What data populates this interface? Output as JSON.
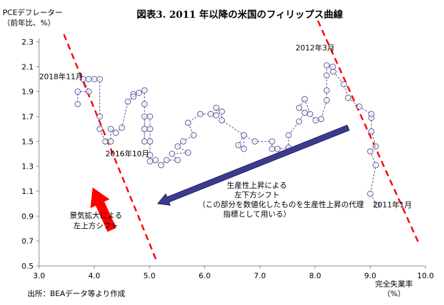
{
  "chart_data": {
    "type": "scatter",
    "title": "図表3. 2011 年以降の米国のフィリップス曲線",
    "ylabel_lines": [
      "PCEデフレーター",
      "（前年比、%）"
    ],
    "xlabel_lines": [
      "完全失業率",
      "（%）"
    ],
    "source": "出所：BEAデータ等より作成",
    "xlim": [
      3.0,
      10.0
    ],
    "ylim": [
      0.5,
      2.3
    ],
    "xticks": [
      "3.0",
      "4.0",
      "5.0",
      "6.0",
      "7.0",
      "8.0",
      "9.0",
      "10.0"
    ],
    "yticks": [
      "0.5",
      "0.7",
      "0.9",
      "1.1",
      "1.3",
      "1.5",
      "1.7",
      "1.9",
      "2.1",
      "2.3"
    ],
    "grid": false,
    "series_color": "#5a5a9a",
    "points": [
      [
        9.12,
        0.99
      ],
      [
        9.0,
        1.08
      ],
      [
        9.1,
        1.31
      ],
      [
        9.0,
        1.42
      ],
      [
        9.1,
        1.46
      ],
      [
        9.02,
        1.58
      ],
      [
        9.02,
        1.69
      ],
      [
        9.02,
        1.72
      ],
      [
        8.8,
        1.78
      ],
      [
        8.6,
        1.85
      ],
      [
        8.52,
        1.96
      ],
      [
        8.33,
        2.06
      ],
      [
        8.32,
        2.1
      ],
      [
        8.21,
        2.11
      ],
      [
        8.21,
        2.03
      ],
      [
        8.21,
        1.91
      ],
      [
        8.21,
        1.83
      ],
      [
        8.11,
        1.68
      ],
      [
        8.01,
        1.67
      ],
      [
        7.91,
        1.72
      ],
      [
        7.81,
        1.84
      ],
      [
        7.71,
        1.77
      ],
      [
        7.81,
        1.73
      ],
      [
        7.71,
        1.66
      ],
      [
        7.52,
        1.55
      ],
      [
        7.52,
        1.45
      ],
      [
        7.32,
        1.44
      ],
      [
        7.22,
        1.44
      ],
      [
        7.22,
        1.5
      ],
      [
        6.91,
        1.5
      ],
      [
        6.71,
        1.55
      ],
      [
        6.61,
        1.47
      ],
      [
        6.71,
        1.44
      ],
      [
        6.71,
        1.55
      ],
      [
        6.31,
        1.67
      ],
      [
        6.31,
        1.74
      ],
      [
        6.21,
        1.77
      ],
      [
        6.21,
        1.71
      ],
      [
        6.11,
        1.72
      ],
      [
        5.92,
        1.72
      ],
      [
        5.7,
        1.65
      ],
      [
        5.8,
        1.55
      ],
      [
        5.61,
        1.5
      ],
      [
        5.51,
        1.46
      ],
      [
        5.7,
        1.41
      ],
      [
        5.41,
        1.4
      ],
      [
        5.51,
        1.35
      ],
      [
        5.31,
        1.35
      ],
      [
        5.21,
        1.31
      ],
      [
        5.11,
        1.35
      ],
      [
        5.01,
        1.34
      ],
      [
        5.01,
        1.39
      ],
      [
        5.01,
        1.5
      ],
      [
        5.01,
        1.6
      ],
      [
        5.01,
        1.7
      ],
      [
        4.91,
        1.7
      ],
      [
        4.91,
        1.6
      ],
      [
        4.91,
        1.5
      ],
      [
        4.91,
        1.6
      ],
      [
        4.91,
        1.8
      ],
      [
        4.91,
        1.91
      ],
      [
        4.81,
        1.89
      ],
      [
        4.71,
        1.88
      ],
      [
        4.71,
        1.86
      ],
      [
        4.61,
        1.82
      ],
      [
        4.5,
        1.61
      ],
      [
        4.39,
        1.57
      ],
      [
        4.3,
        1.6
      ],
      [
        4.3,
        1.5
      ],
      [
        4.2,
        1.5
      ],
      [
        4.1,
        1.6
      ],
      [
        4.1,
        1.7
      ],
      [
        4.1,
        2.0
      ],
      [
        4.0,
        2.0
      ],
      [
        3.9,
        2.0
      ],
      [
        3.8,
        2.0
      ],
      [
        3.9,
        1.9
      ],
      [
        3.7,
        1.9
      ],
      [
        3.7,
        1.8
      ]
    ],
    "point_labels": [
      {
        "text": "2011年1月",
        "x": 9.4,
        "y": 0.97
      },
      {
        "text": "2012年3月",
        "x": 8.0,
        "y": 2.23
      },
      {
        "text": "2016年10月",
        "x": 4.6,
        "y": 1.38
      },
      {
        "text": "2018年11月",
        "x": 3.4,
        "y": 2.0
      }
    ],
    "trend_lines": [
      {
        "from": [
          3.45,
          2.36
        ],
        "to": [
          5.12,
          0.55
        ],
        "color": "#ff0000"
      },
      {
        "from": [
          8.05,
          2.47
        ],
        "to": [
          9.89,
          0.67
        ],
        "color": "#ff0000"
      }
    ],
    "arrows": [
      {
        "from": [
          4.32,
          0.79
        ],
        "to": [
          3.97,
          1.13
        ],
        "color": "#ff0000",
        "lines": [
          "景気拡大による",
          "左上方シフト"
        ]
      },
      {
        "from": [
          8.6,
          1.61
        ],
        "to": [
          5.15,
          1.0
        ],
        "color": "#3b3b8e",
        "lines": [
          "生産性上昇による",
          "左下方シフト",
          "（この部分を数値化したものを生産性上昇の代理",
          "指標として用いる）"
        ]
      }
    ]
  }
}
